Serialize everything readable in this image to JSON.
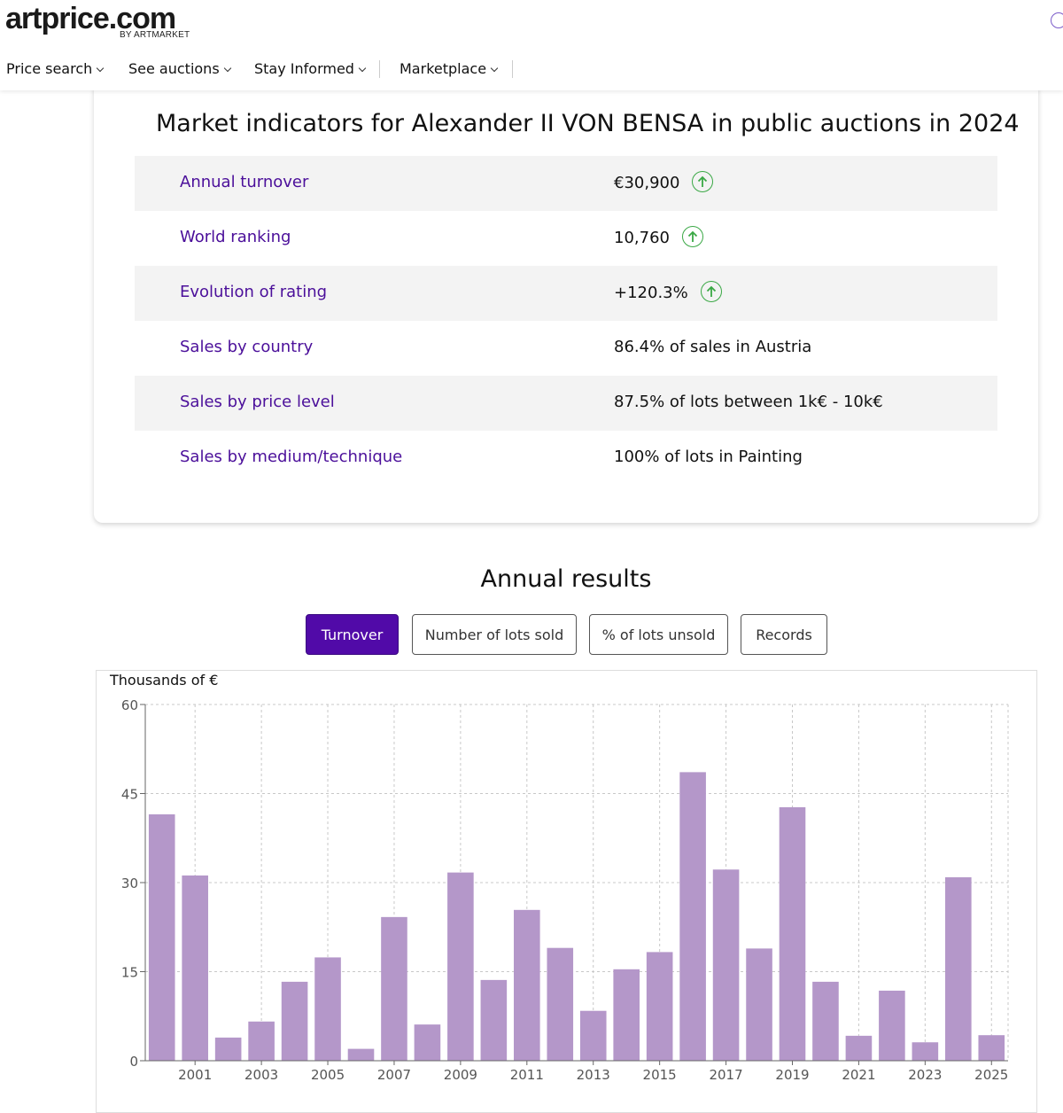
{
  "header": {
    "logo": "artprice.com",
    "logo_sub": "BY ARTMARKET",
    "nav": [
      {
        "label": "Price search"
      },
      {
        "label": "See auctions"
      },
      {
        "label": "Stay Informed"
      },
      {
        "label": "Marketplace"
      }
    ]
  },
  "indicators": {
    "title": "Market indicators for Alexander II VON BENSA in public auctions in 2024",
    "rows": [
      {
        "label": "Annual turnover",
        "value": "€30,900",
        "trend": "up"
      },
      {
        "label": "World ranking",
        "value": "10,760",
        "trend": "up"
      },
      {
        "label": "Evolution of rating",
        "value": "+120.3%",
        "trend": "up"
      },
      {
        "label": "Sales by country",
        "value": "86.4% of sales in Austria"
      },
      {
        "label": "Sales by price level",
        "value": "87.5% of lots between 1k€ - 10k€"
      },
      {
        "label": "Sales by medium/technique",
        "value": "100% of lots in Painting"
      }
    ]
  },
  "annual": {
    "title": "Annual results",
    "tabs": [
      {
        "label": "Turnover",
        "active": true
      },
      {
        "label": "Number of lots sold",
        "active": false
      },
      {
        "label": "% of lots unsold",
        "active": false
      },
      {
        "label": "Records",
        "active": false
      }
    ]
  },
  "colors": {
    "accent": "#510aa8",
    "link": "#4b0f9a",
    "bar": "#b497c9",
    "trend_up": "#3aa845"
  },
  "chart_data": {
    "type": "bar",
    "ylabel": "Thousands of €",
    "ylim": [
      0,
      60
    ],
    "yticks": [
      0,
      15,
      30,
      45,
      60
    ],
    "grid": true,
    "categories": [
      "2000",
      "2001",
      "2002",
      "2003",
      "2004",
      "2005",
      "2006",
      "2007",
      "2008",
      "2009",
      "2010",
      "2011",
      "2012",
      "2013",
      "2014",
      "2015",
      "2016",
      "2017",
      "2018",
      "2019",
      "2020",
      "2021",
      "2022",
      "2023",
      "2024",
      "2025"
    ],
    "xtick_labels": [
      "2001",
      "2003",
      "2005",
      "2007",
      "2009",
      "2011",
      "2013",
      "2015",
      "2017",
      "2019",
      "2021",
      "2023",
      "2025"
    ],
    "values": [
      41.5,
      31.2,
      3.9,
      6.6,
      13.3,
      17.4,
      2.0,
      24.2,
      6.1,
      31.7,
      13.6,
      25.4,
      19.0,
      8.4,
      15.4,
      18.3,
      48.6,
      32.2,
      18.9,
      42.7,
      13.3,
      4.2,
      11.8,
      3.1,
      30.9,
      4.3
    ]
  }
}
